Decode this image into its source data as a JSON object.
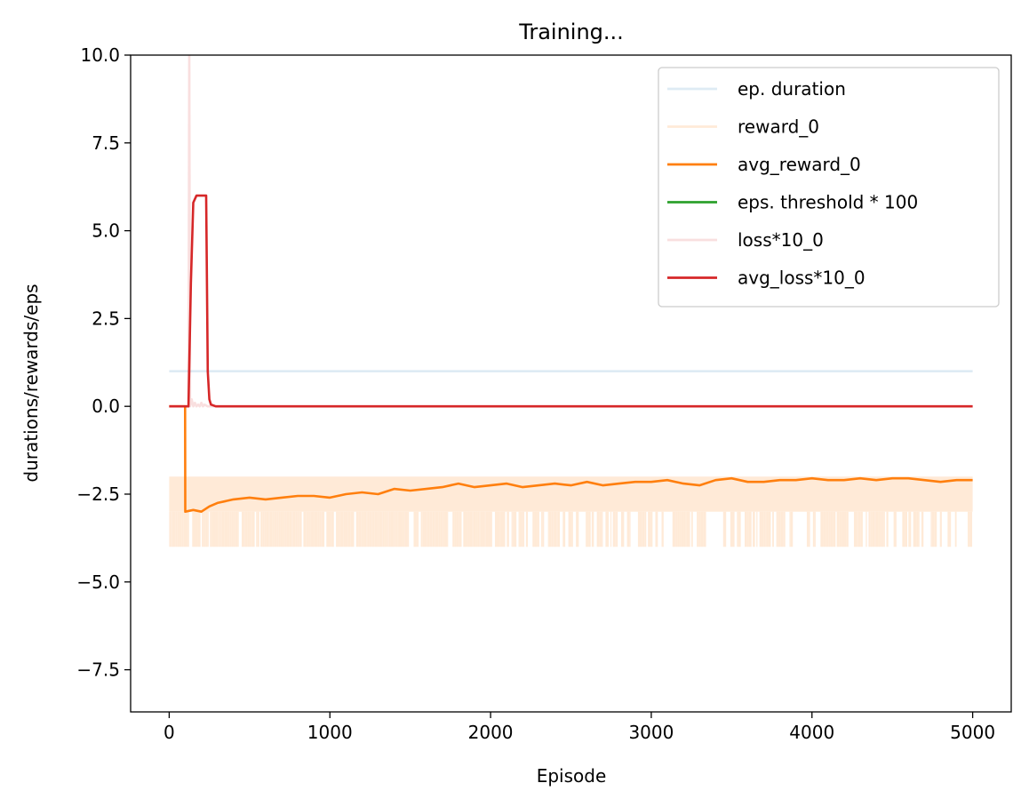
{
  "chart_data": {
    "type": "line",
    "title": "Training...",
    "xlabel": "Episode",
    "ylabel": "durations/rewards/eps",
    "xlim": [
      -240,
      5240
    ],
    "ylim": [
      -8.7,
      10.0
    ],
    "xticks": [
      0,
      1000,
      2000,
      3000,
      4000,
      5000
    ],
    "xtick_labels": [
      "0",
      "1000",
      "2000",
      "3000",
      "4000",
      "5000"
    ],
    "yticks": [
      -7.5,
      -5.0,
      -2.5,
      0.0,
      2.5,
      5.0,
      7.5,
      10.0
    ],
    "ytick_labels": [
      "−7.5",
      "−5.0",
      "−2.5",
      "0.0",
      "2.5",
      "5.0",
      "7.5",
      "10.0"
    ],
    "grid": false,
    "legend_position": "upper right",
    "series": [
      {
        "name": "ep. duration",
        "color": "#1f77b4",
        "opacity": 0.15,
        "style": "flat",
        "x": [
          0,
          5000
        ],
        "y": [
          1,
          1
        ]
      },
      {
        "name": "reward_0",
        "color": "#ff7f0e",
        "opacity": 0.16,
        "style": "band",
        "x_range": [
          0,
          5000
        ],
        "band_dense": [
          -2,
          -3
        ],
        "band_spikes": [
          -3,
          -4
        ],
        "note_values": [
          -2,
          -3,
          -4
        ]
      },
      {
        "name": "avg_reward_0",
        "color": "#ff7f0e",
        "opacity": 1,
        "style": "line",
        "x": [
          0,
          99,
          100,
          150,
          200,
          250,
          300,
          400,
          500,
          600,
          700,
          800,
          900,
          1000,
          1100,
          1200,
          1300,
          1400,
          1500,
          1600,
          1700,
          1800,
          1900,
          2000,
          2100,
          2200,
          2300,
          2400,
          2500,
          2600,
          2700,
          2800,
          2900,
          3000,
          3100,
          3200,
          3300,
          3400,
          3500,
          3600,
          3700,
          3800,
          3900,
          4000,
          4100,
          4200,
          4300,
          4400,
          4500,
          4600,
          4700,
          4800,
          4900,
          5000
        ],
        "y": [
          0,
          0,
          -3.0,
          -2.95,
          -3.0,
          -2.85,
          -2.75,
          -2.65,
          -2.6,
          -2.65,
          -2.6,
          -2.55,
          -2.55,
          -2.6,
          -2.5,
          -2.45,
          -2.5,
          -2.35,
          -2.4,
          -2.35,
          -2.3,
          -2.2,
          -2.3,
          -2.25,
          -2.2,
          -2.3,
          -2.25,
          -2.2,
          -2.25,
          -2.15,
          -2.25,
          -2.2,
          -2.15,
          -2.15,
          -2.1,
          -2.2,
          -2.25,
          -2.1,
          -2.05,
          -2.15,
          -2.15,
          -2.1,
          -2.1,
          -2.05,
          -2.1,
          -2.1,
          -2.05,
          -2.1,
          -2.05,
          -2.05,
          -2.1,
          -2.15,
          -2.1,
          -2.1
        ]
      },
      {
        "name": "eps. threshold * 100",
        "color": "#2ca02c",
        "opacity": 1,
        "style": "legend-only",
        "x": [],
        "y": []
      },
      {
        "name": "loss*10_0",
        "color": "#d62728",
        "opacity": 0.15,
        "style": "line",
        "x": [
          0,
          120,
          125,
          130,
          140,
          150,
          160,
          170,
          180,
          190,
          200,
          210,
          220,
          240,
          5000
        ],
        "y": [
          0,
          0,
          10.5,
          0,
          0.2,
          0,
          0.1,
          0,
          0.05,
          0,
          0.1,
          0,
          0.05,
          0,
          0
        ]
      },
      {
        "name": "avg_loss*10_0",
        "color": "#d62728",
        "opacity": 1,
        "style": "line",
        "x": [
          0,
          120,
          135,
          150,
          170,
          190,
          230,
          240,
          250,
          260,
          290,
          5000
        ],
        "y": [
          0,
          0,
          3.5,
          5.8,
          6.0,
          6.0,
          6.0,
          1.0,
          0.2,
          0.05,
          0.0,
          0.0
        ]
      }
    ]
  }
}
